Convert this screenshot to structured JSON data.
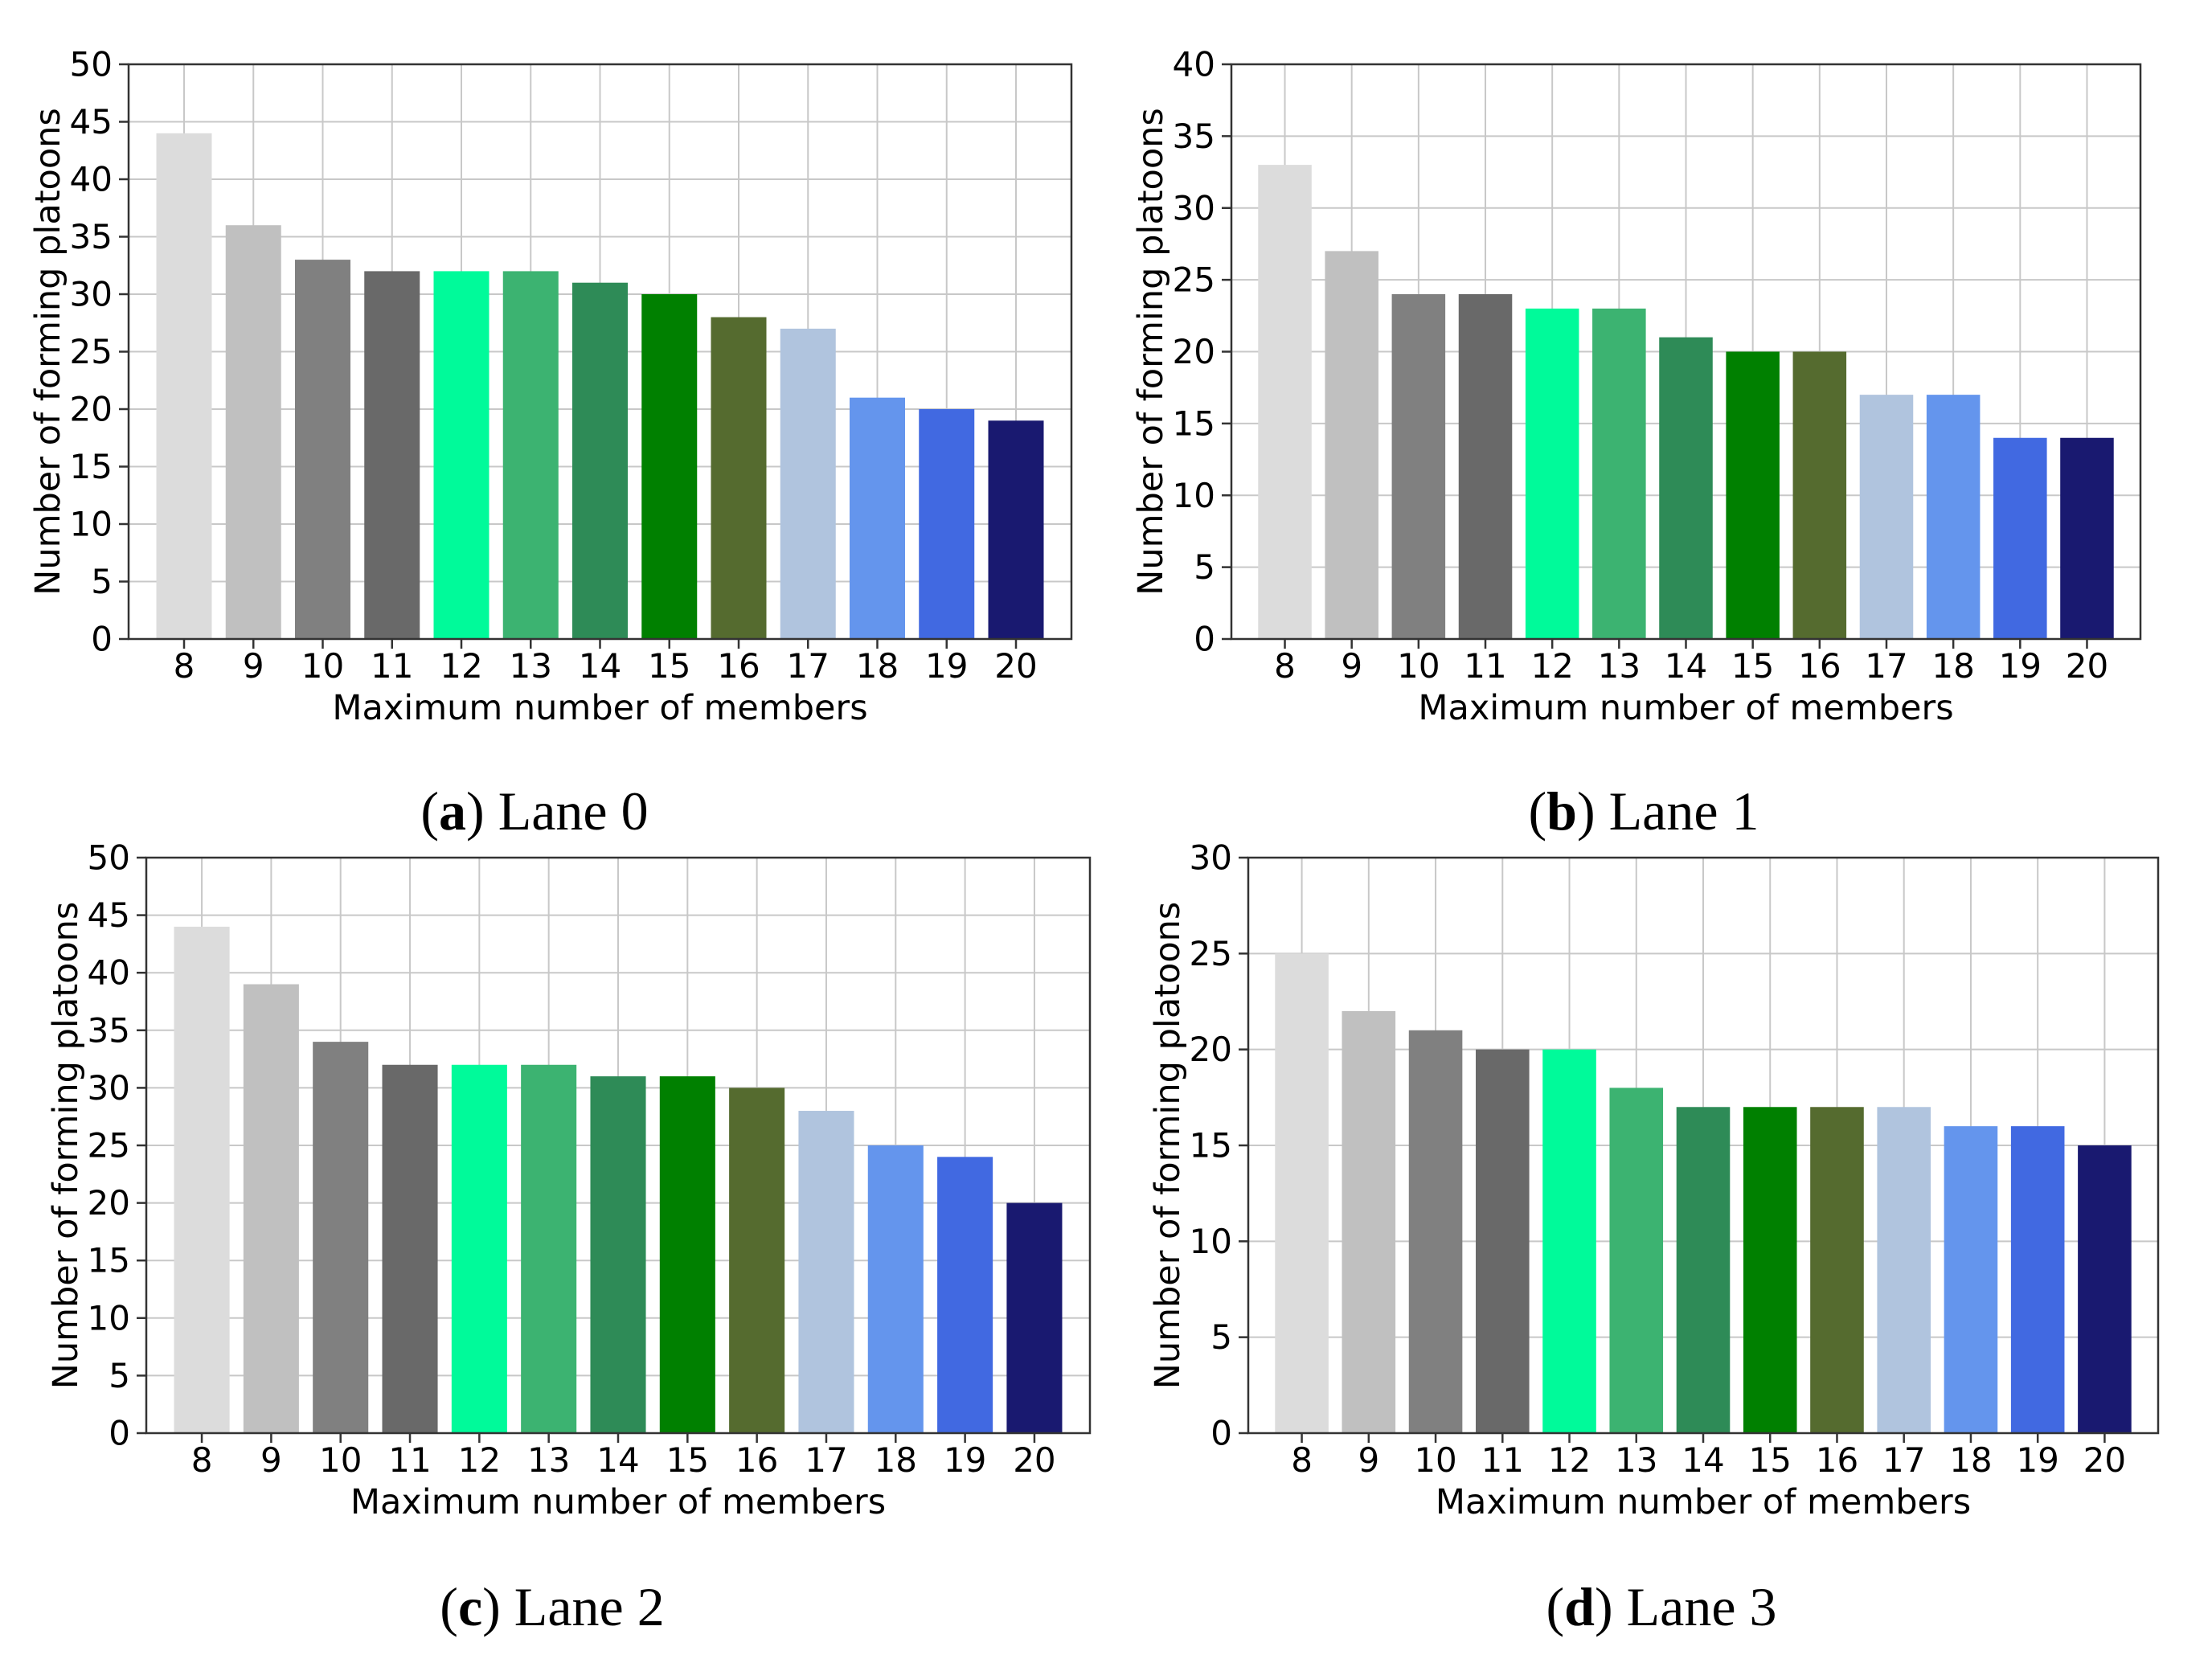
{
  "palette": [
    "#dcdcdc",
    "#c0c0c0",
    "#808080",
    "#696969",
    "#00fa9a",
    "#3cb371",
    "#2e8b57",
    "#008000",
    "#556b2f",
    "#b0c4de",
    "#6495ed",
    "#4169e1",
    "#191970"
  ],
  "chart_data": [
    {
      "type": "bar",
      "categories": [
        "8",
        "9",
        "10",
        "11",
        "12",
        "13",
        "14",
        "15",
        "16",
        "17",
        "18",
        "19",
        "20"
      ],
      "values": [
        44,
        36,
        33,
        32,
        32,
        32,
        31,
        30,
        28,
        27,
        21,
        20,
        19
      ],
      "xlabel": "Maximum number of members",
      "ylabel": "Number of forming platoons",
      "ylim": [
        0,
        50
      ],
      "yticks": [
        0,
        5,
        10,
        15,
        20,
        25,
        30,
        35,
        40,
        45,
        50
      ],
      "grid": true,
      "caption": {
        "letter": "a",
        "text": "Lane 0"
      }
    },
    {
      "type": "bar",
      "categories": [
        "8",
        "9",
        "10",
        "11",
        "12",
        "13",
        "14",
        "15",
        "16",
        "17",
        "18",
        "19",
        "20"
      ],
      "values": [
        33,
        27,
        24,
        24,
        23,
        23,
        21,
        20,
        20,
        17,
        17,
        14,
        14
      ],
      "xlabel": "Maximum number of members",
      "ylabel": "Number of forming platoons",
      "ylim": [
        0,
        40
      ],
      "yticks": [
        0,
        5,
        10,
        15,
        20,
        25,
        30,
        35,
        40
      ],
      "grid": true,
      "caption": {
        "letter": "b",
        "text": "Lane 1"
      }
    },
    {
      "type": "bar",
      "categories": [
        "8",
        "9",
        "10",
        "11",
        "12",
        "13",
        "14",
        "15",
        "16",
        "17",
        "18",
        "19",
        "20"
      ],
      "values": [
        44,
        39,
        34,
        32,
        32,
        32,
        31,
        31,
        30,
        28,
        25,
        24,
        20
      ],
      "xlabel": "Maximum number of members",
      "ylabel": "Number of forming platoons",
      "ylim": [
        0,
        50
      ],
      "yticks": [
        0,
        5,
        10,
        15,
        20,
        25,
        30,
        35,
        40,
        45,
        50
      ],
      "grid": true,
      "caption": {
        "letter": "c",
        "text": "Lane 2"
      }
    },
    {
      "type": "bar",
      "categories": [
        "8",
        "9",
        "10",
        "11",
        "12",
        "13",
        "14",
        "15",
        "16",
        "17",
        "18",
        "19",
        "20"
      ],
      "values": [
        25,
        22,
        21,
        20,
        20,
        18,
        17,
        17,
        17,
        17,
        16,
        16,
        15
      ],
      "xlabel": "Maximum number of members",
      "ylabel": "Number of forming platoons",
      "ylim": [
        0,
        30
      ],
      "yticks": [
        0,
        5,
        10,
        15,
        20,
        25,
        30
      ],
      "grid": true,
      "caption": {
        "letter": "d",
        "text": "Lane 3"
      }
    }
  ]
}
